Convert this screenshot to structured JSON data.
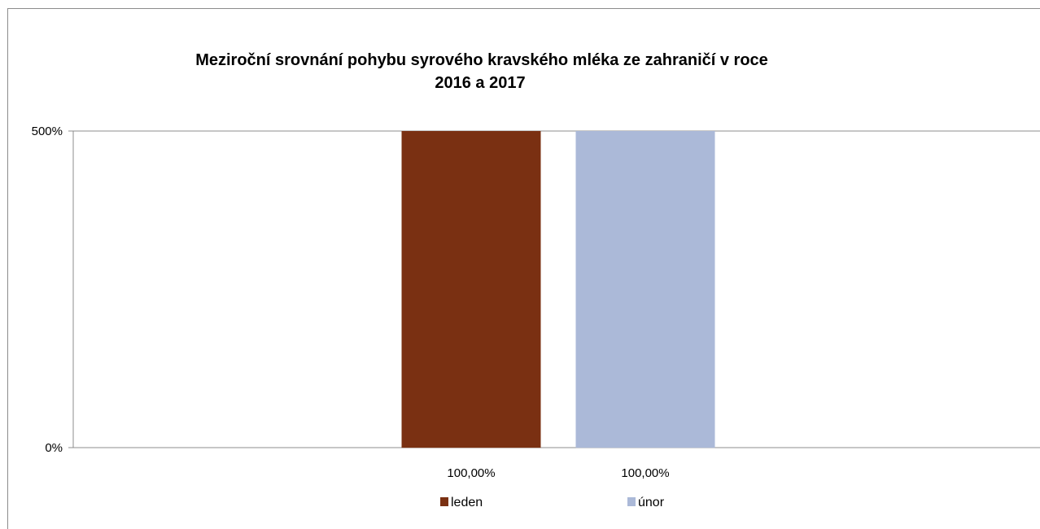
{
  "chart_data": {
    "type": "bar",
    "title": "Meziroční srovnání pohybu syrového kravského mléka ze zahraničí v roce 2016 a 2017",
    "title_lines": [
      "Meziroční srovnání pohybu syrového kravského mléka ze zahraničí v roce",
      "2016 a 2017"
    ],
    "xlabel": "",
    "ylabel": "",
    "ylim": [
      0,
      5
    ],
    "y_ticks": [
      0,
      5
    ],
    "y_tick_labels": [
      "0%",
      "500%"
    ],
    "axis_style": "broken axis: bars overflow above the 500% line; bar bases drawn near 100%",
    "grid": true,
    "legend_position": "bottom",
    "series": [
      {
        "name": "leden",
        "color": "#7a3012",
        "value": 1.0,
        "data_label": "100,00%"
      },
      {
        "name": "únor",
        "color": "#abb9d8",
        "value": 1.0,
        "data_label": "100,00%"
      }
    ]
  }
}
